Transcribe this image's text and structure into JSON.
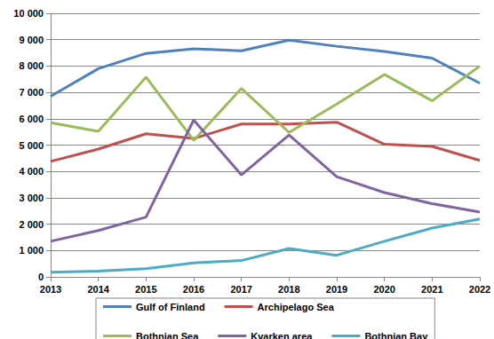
{
  "chart_data": {
    "type": "line",
    "categories": [
      "2013",
      "2014",
      "2015",
      "2016",
      "2017",
      "2018",
      "2019",
      "2020",
      "2021",
      "2022"
    ],
    "series": [
      {
        "name": "Gulf of Finland",
        "color": "#4F81BD",
        "values": [
          6850,
          7900,
          8480,
          8650,
          8580,
          8980,
          8750,
          8550,
          8300,
          7350
        ]
      },
      {
        "name": "Archipelago Sea",
        "color": "#C0504D",
        "values": [
          4380,
          4850,
          5430,
          5250,
          5800,
          5800,
          5870,
          5030,
          4950,
          4420
        ]
      },
      {
        "name": "Bothnian Sea",
        "color": "#9BBB59",
        "values": [
          5850,
          5520,
          7580,
          5180,
          7150,
          5480,
          6560,
          7680,
          6680,
          8000
        ]
      },
      {
        "name": "Kvarken area",
        "color": "#8064A2",
        "values": [
          1350,
          1760,
          2270,
          5950,
          3870,
          5380,
          3800,
          3200,
          2780,
          2460
        ]
      },
      {
        "name": "Bothnian Bay",
        "color": "#4BACC6",
        "values": [
          180,
          220,
          310,
          530,
          620,
          1080,
          820,
          1350,
          1850,
          2200
        ]
      }
    ],
    "ylim": [
      0,
      10000
    ],
    "yticks": [
      0,
      {
        "value": 1000,
        "label": "1 000"
      },
      {
        "value": 2000,
        "label": "2 000"
      },
      {
        "value": 3000,
        "label": "3 000"
      },
      {
        "value": 4000,
        "label": "4 000"
      },
      {
        "value": 5000,
        "label": "5 000"
      },
      {
        "value": 6000,
        "label": "6 000"
      },
      {
        "value": 7000,
        "label": "7 000"
      },
      {
        "value": 8000,
        "label": "8 000"
      },
      {
        "value": 9000,
        "label": "9 000"
      },
      {
        "value": 10000,
        "label": "10 000"
      }
    ],
    "grid": true,
    "legend": "bottom"
  }
}
